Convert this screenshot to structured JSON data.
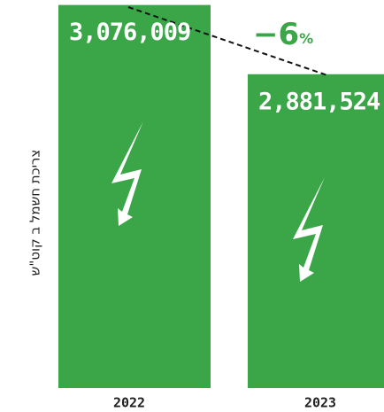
{
  "chart_data": {
    "type": "bar",
    "y_label": "צריכת חשמל ב קוט\"ש",
    "categories": [
      "2022",
      "2023"
    ],
    "values": [
      3076009,
      2881524
    ],
    "value_labels": [
      "3,076,009",
      "2,881,524"
    ],
    "color": "#3aa648",
    "annotation": {
      "value": "−6",
      "unit": "%"
    },
    "ylim": [
      2000000,
      3090000
    ]
  }
}
